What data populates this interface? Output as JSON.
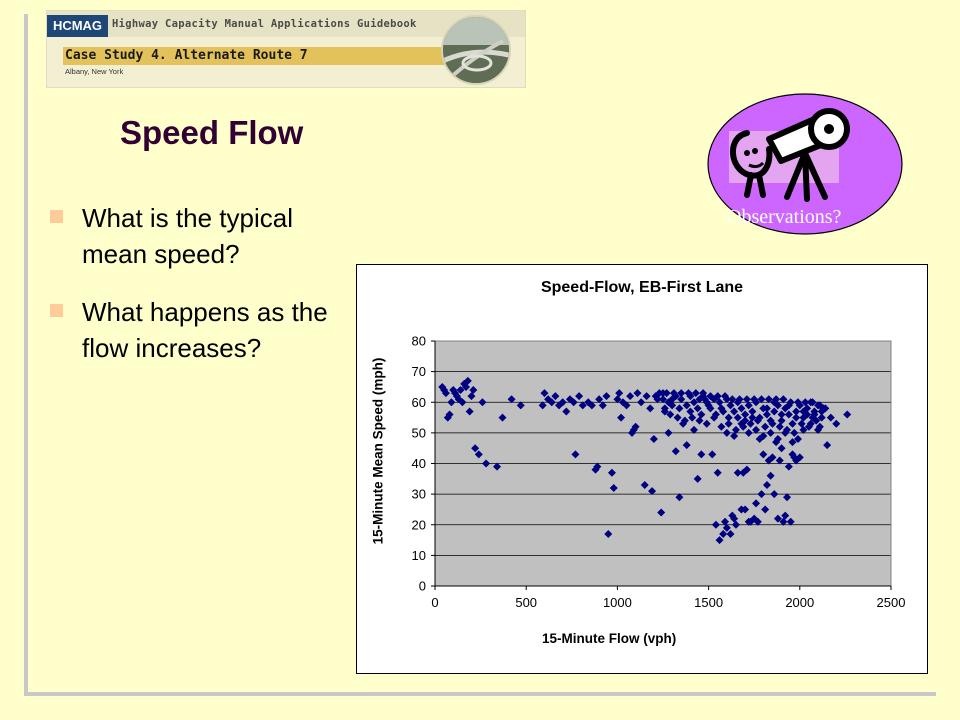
{
  "banner": {
    "logo": "HCMAG",
    "subtitle": "Highway Capacity Manual Applications Guidebook",
    "case_study": "Case Study 4. Alternate Route 7",
    "location": "Albany, New York"
  },
  "slide": {
    "title": "Speed Flow",
    "bullets": [
      "What is the typical mean speed?",
      "What happens as the flow increases?"
    ]
  },
  "observations": {
    "label": "Observations?",
    "fill_color": "#cc66ff"
  },
  "chart_data": {
    "type": "scatter",
    "title": "Speed-Flow, EB-First Lane",
    "xlabel": "15-Minute Flow (vph)",
    "ylabel": "15-Minute Mean Speed (mph)",
    "xlim": [
      0,
      2500
    ],
    "ylim": [
      0,
      80
    ],
    "xticks": [
      0,
      500,
      1000,
      1500,
      2000,
      2500
    ],
    "yticks": [
      0,
      10,
      20,
      30,
      40,
      50,
      60,
      70,
      80
    ],
    "grid": "horizontal",
    "plot_background": "#c0c0c0",
    "marker_color": "#000080",
    "marker": "diamond",
    "points": [
      [
        40,
        65
      ],
      [
        50,
        64
      ],
      [
        60,
        63
      ],
      [
        70,
        55
      ],
      [
        80,
        56
      ],
      [
        90,
        60
      ],
      [
        100,
        64
      ],
      [
        110,
        63
      ],
      [
        120,
        62
      ],
      [
        130,
        61
      ],
      [
        140,
        64
      ],
      [
        150,
        60
      ],
      [
        160,
        66
      ],
      [
        170,
        65
      ],
      [
        180,
        67
      ],
      [
        190,
        57
      ],
      [
        200,
        62
      ],
      [
        210,
        64
      ],
      [
        220,
        45
      ],
      [
        240,
        43
      ],
      [
        260,
        60
      ],
      [
        280,
        40
      ],
      [
        340,
        39
      ],
      [
        370,
        55
      ],
      [
        420,
        61
      ],
      [
        470,
        59
      ],
      [
        590,
        59
      ],
      [
        600,
        63
      ],
      [
        620,
        61
      ],
      [
        640,
        60
      ],
      [
        660,
        62
      ],
      [
        680,
        59
      ],
      [
        700,
        60
      ],
      [
        720,
        57
      ],
      [
        740,
        61
      ],
      [
        760,
        60
      ],
      [
        770,
        43
      ],
      [
        790,
        62
      ],
      [
        810,
        59
      ],
      [
        840,
        60
      ],
      [
        860,
        59
      ],
      [
        880,
        38
      ],
      [
        890,
        39
      ],
      [
        900,
        61
      ],
      [
        920,
        59
      ],
      [
        940,
        62
      ],
      [
        950,
        17
      ],
      [
        970,
        37
      ],
      [
        980,
        32
      ],
      [
        1000,
        61
      ],
      [
        1010,
        63
      ],
      [
        1020,
        55
      ],
      [
        1030,
        60
      ],
      [
        1050,
        59
      ],
      [
        1070,
        62
      ],
      [
        1080,
        50
      ],
      [
        1090,
        51
      ],
      [
        1100,
        52
      ],
      [
        1110,
        63
      ],
      [
        1130,
        60
      ],
      [
        1150,
        33
      ],
      [
        1160,
        62
      ],
      [
        1180,
        58
      ],
      [
        1190,
        31
      ],
      [
        1200,
        48
      ],
      [
        1210,
        62
      ],
      [
        1220,
        61
      ],
      [
        1240,
        24
      ],
      [
        1250,
        63
      ],
      [
        1260,
        57
      ],
      [
        1280,
        50
      ],
      [
        1300,
        61
      ],
      [
        1320,
        44
      ],
      [
        1340,
        29
      ],
      [
        1360,
        53
      ],
      [
        1380,
        46
      ],
      [
        1400,
        57
      ],
      [
        1420,
        51
      ],
      [
        1440,
        35
      ],
      [
        1460,
        43
      ],
      [
        1480,
        61
      ],
      [
        1500,
        59
      ],
      [
        1520,
        43
      ],
      [
        1540,
        20
      ],
      [
        1550,
        37
      ],
      [
        1560,
        15
      ],
      [
        1570,
        58
      ],
      [
        1580,
        17
      ],
      [
        1590,
        21
      ],
      [
        1600,
        19
      ],
      [
        1610,
        55
      ],
      [
        1620,
        17
      ],
      [
        1630,
        23
      ],
      [
        1640,
        22
      ],
      [
        1650,
        20
      ],
      [
        1660,
        37
      ],
      [
        1680,
        25
      ],
      [
        1690,
        37
      ],
      [
        1700,
        25
      ],
      [
        1710,
        38
      ],
      [
        1720,
        21
      ],
      [
        1730,
        21
      ],
      [
        1740,
        55
      ],
      [
        1750,
        22
      ],
      [
        1760,
        27
      ],
      [
        1770,
        21
      ],
      [
        1780,
        48
      ],
      [
        1790,
        30
      ],
      [
        1800,
        43
      ],
      [
        1810,
        25
      ],
      [
        1820,
        33
      ],
      [
        1830,
        41
      ],
      [
        1840,
        36
      ],
      [
        1850,
        42
      ],
      [
        1860,
        30
      ],
      [
        1870,
        47
      ],
      [
        1880,
        22
      ],
      [
        1890,
        41
      ],
      [
        1900,
        45
      ],
      [
        1910,
        21
      ],
      [
        1920,
        23
      ],
      [
        1930,
        29
      ],
      [
        1940,
        39
      ],
      [
        1950,
        21
      ],
      [
        1960,
        43
      ],
      [
        1970,
        42
      ],
      [
        1980,
        41
      ],
      [
        1990,
        48
      ],
      [
        2000,
        42
      ],
      [
        2020,
        51
      ],
      [
        2040,
        56
      ],
      [
        2060,
        53
      ],
      [
        2080,
        57
      ],
      [
        2100,
        51
      ],
      [
        2120,
        55
      ],
      [
        2140,
        58
      ],
      [
        2150,
        46
      ],
      [
        2170,
        55
      ],
      [
        2200,
        53
      ],
      [
        2260,
        56
      ],
      [
        1250,
        61
      ],
      [
        1280,
        60
      ],
      [
        1300,
        59
      ],
      [
        1320,
        62
      ],
      [
        1350,
        61
      ],
      [
        1380,
        59
      ],
      [
        1400,
        62
      ],
      [
        1420,
        60
      ],
      [
        1440,
        58
      ],
      [
        1450,
        61
      ],
      [
        1470,
        63
      ],
      [
        1490,
        60
      ],
      [
        1510,
        58
      ],
      [
        1530,
        61
      ],
      [
        1560,
        60
      ],
      [
        1580,
        57
      ],
      [
        1600,
        61
      ],
      [
        1620,
        59
      ],
      [
        1640,
        57
      ],
      [
        1660,
        60
      ],
      [
        1680,
        58
      ],
      [
        1700,
        56
      ],
      [
        1720,
        59
      ],
      [
        1740,
        57
      ],
      [
        1760,
        60
      ],
      [
        1780,
        55
      ],
      [
        1800,
        58
      ],
      [
        1820,
        56
      ],
      [
        1840,
        54
      ],
      [
        1860,
        57
      ],
      [
        1880,
        59
      ],
      [
        1900,
        54
      ],
      [
        1920,
        58
      ],
      [
        1940,
        56
      ],
      [
        1960,
        53
      ],
      [
        1980,
        57
      ],
      [
        2000,
        59
      ],
      [
        2020,
        55
      ],
      [
        2040,
        58
      ],
      [
        2060,
        60
      ],
      [
        2080,
        56
      ],
      [
        2100,
        59
      ],
      [
        2120,
        57
      ],
      [
        1230,
        63
      ],
      [
        1270,
        63
      ],
      [
        1310,
        63
      ],
      [
        1350,
        63
      ],
      [
        1390,
        63
      ],
      [
        1430,
        63
      ],
      [
        1470,
        62
      ],
      [
        1510,
        62
      ],
      [
        1550,
        62
      ],
      [
        1590,
        62
      ],
      [
        1630,
        61
      ],
      [
        1670,
        61
      ],
      [
        1710,
        61
      ],
      [
        1750,
        61
      ],
      [
        1790,
        61
      ],
      [
        1830,
        61
      ],
      [
        1870,
        61
      ],
      [
        1910,
        61
      ],
      [
        1950,
        60
      ],
      [
        1990,
        60
      ],
      [
        2030,
        60
      ],
      [
        2070,
        60
      ],
      [
        2110,
        59
      ],
      [
        2130,
        58
      ],
      [
        1290,
        56
      ],
      [
        1330,
        55
      ],
      [
        1370,
        54
      ],
      [
        1410,
        55
      ],
      [
        1450,
        54
      ],
      [
        1490,
        53
      ],
      [
        1530,
        55
      ],
      [
        1570,
        52
      ],
      [
        1610,
        53
      ],
      [
        1650,
        51
      ],
      [
        1690,
        52
      ],
      [
        1730,
        53
      ],
      [
        1770,
        54
      ],
      [
        1810,
        52
      ],
      [
        1850,
        53
      ],
      [
        1890,
        52
      ],
      [
        1930,
        51
      ],
      [
        1970,
        50
      ],
      [
        2010,
        53
      ],
      [
        2050,
        52
      ],
      [
        2090,
        54
      ],
      [
        1260,
        58
      ],
      [
        1340,
        58
      ],
      [
        1460,
        56
      ],
      [
        1540,
        56
      ],
      [
        1660,
        55
      ],
      [
        1700,
        54
      ],
      [
        1820,
        58
      ],
      [
        1860,
        60
      ],
      [
        1900,
        56
      ],
      [
        1940,
        59
      ],
      [
        1980,
        55
      ],
      [
        2020,
        57
      ],
      [
        2070,
        55
      ],
      [
        2110,
        52
      ],
      [
        1600,
        50
      ],
      [
        1640,
        49
      ],
      [
        1680,
        53
      ],
      [
        1720,
        50
      ],
      [
        1760,
        51
      ],
      [
        1800,
        49
      ],
      [
        1840,
        50
      ],
      [
        1880,
        48
      ],
      [
        1920,
        50
      ],
      [
        1960,
        47
      ]
    ]
  }
}
